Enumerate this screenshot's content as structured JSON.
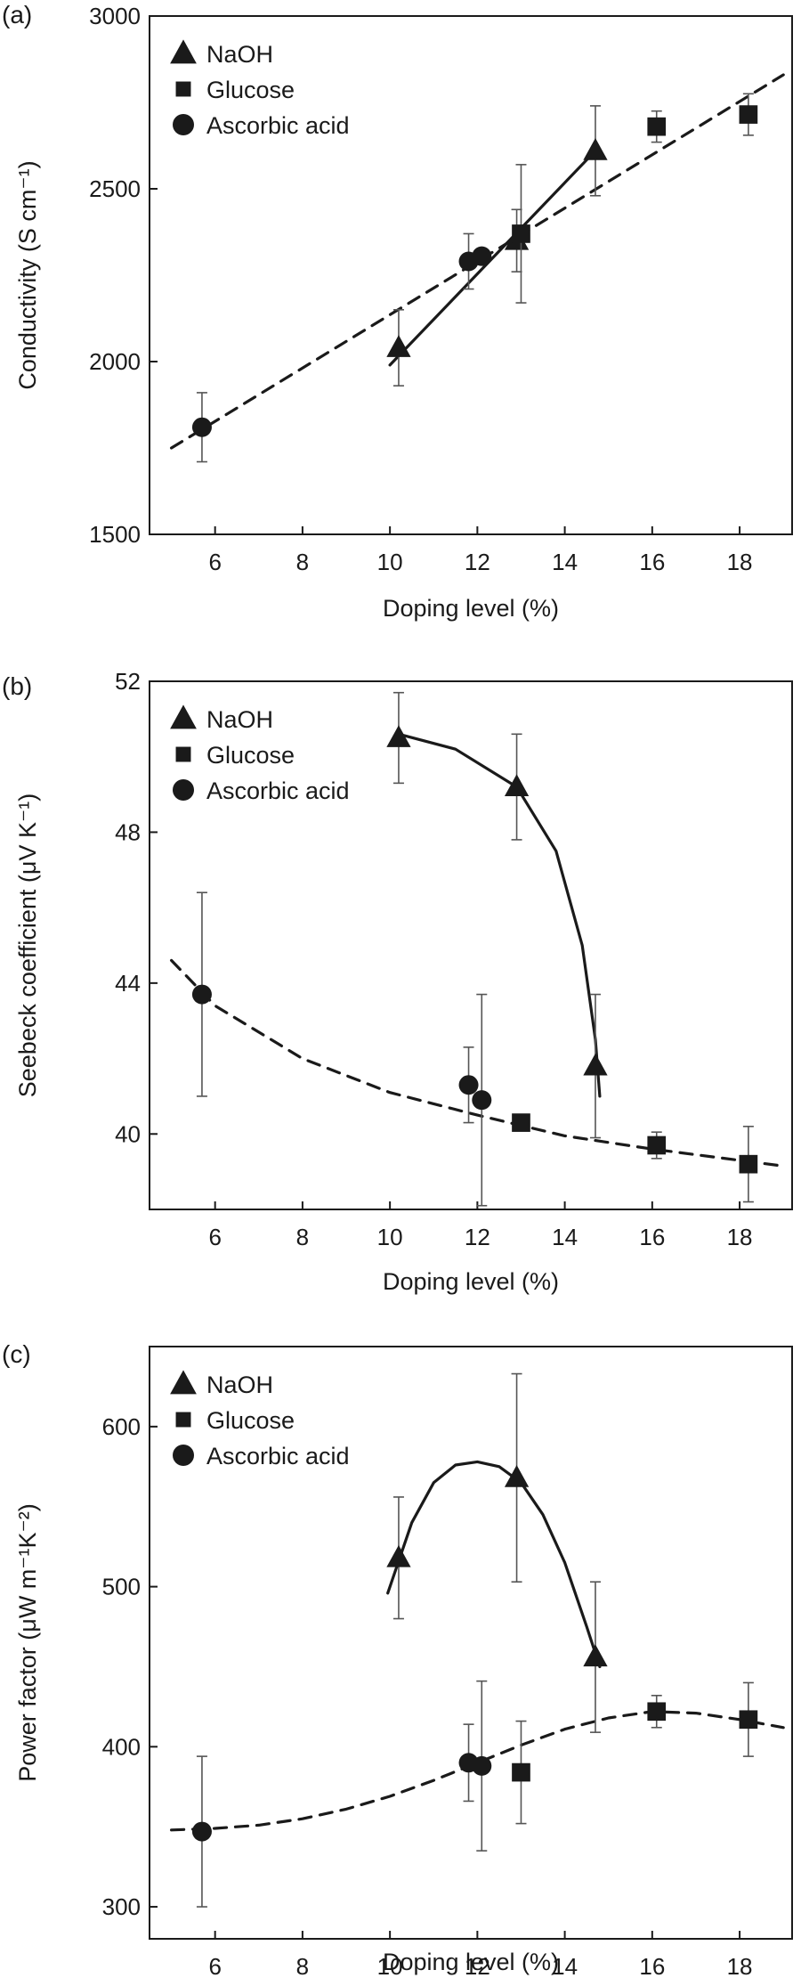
{
  "chart_data": [
    {
      "type": "scatter",
      "panel_label": "(a)",
      "xlabel": "Doping level (%)",
      "ylabel": "Conductivity (S cm⁻¹)",
      "xlim": [
        4.5,
        19.2
      ],
      "ylim": [
        1500,
        3000
      ],
      "xticks": [
        6,
        8,
        10,
        12,
        14,
        16,
        18
      ],
      "yticks": [
        1500,
        2000,
        2500,
        3000
      ],
      "legend": "top-left",
      "series": [
        {
          "name": "NaOH",
          "marker": "triangle",
          "x": [
            10.2,
            12.9,
            14.7
          ],
          "y": [
            2040,
            2350,
            2610
          ],
          "err": [
            110,
            90,
            130
          ]
        },
        {
          "name": "Glucose",
          "marker": "square",
          "x": [
            13.0,
            16.1,
            18.2
          ],
          "y": [
            2370,
            2680,
            2715
          ],
          "err": [
            200,
            45,
            60
          ]
        },
        {
          "name": "Ascorbic acid",
          "marker": "circle",
          "x": [
            5.7,
            11.8,
            12.1
          ],
          "y": [
            1810,
            2290,
            2305
          ],
          "err": [
            100,
            80,
            0
          ]
        }
      ],
      "fits": [
        {
          "style": "solid",
          "x": [
            10.0,
            14.7
          ],
          "y": [
            1990,
            2610
          ]
        },
        {
          "style": "dashed",
          "x": [
            5.0,
            19.0
          ],
          "y": [
            1750,
            2830
          ]
        }
      ]
    },
    {
      "type": "scatter",
      "panel_label": "(b)",
      "xlabel": "Doping level (%)",
      "ylabel": "Seebeck coefficient (μV K⁻¹)",
      "xlim": [
        4.5,
        19.2
      ],
      "ylim": [
        38,
        52
      ],
      "xticks": [
        6,
        8,
        10,
        12,
        14,
        16,
        18
      ],
      "yticks": [
        40,
        44,
        48,
        52
      ],
      "legend": "top-left",
      "series": [
        {
          "name": "NaOH",
          "marker": "triangle",
          "x": [
            10.2,
            12.9,
            14.7
          ],
          "y": [
            50.5,
            49.2,
            41.8
          ],
          "err": [
            1.2,
            1.4,
            1.9
          ]
        },
        {
          "name": "Glucose",
          "marker": "square",
          "x": [
            13.0,
            16.1,
            18.2
          ],
          "y": [
            40.3,
            39.7,
            39.2
          ],
          "err": [
            0,
            0.35,
            1.0
          ]
        },
        {
          "name": "Ascorbic acid",
          "marker": "circle",
          "x": [
            5.7,
            11.8,
            12.1
          ],
          "y": [
            43.7,
            41.3,
            40.9
          ],
          "err": [
            2.7,
            1.0,
            2.8
          ]
        }
      ],
      "fits": [
        {
          "style": "solid",
          "x": [
            10.2,
            11.5,
            12.9,
            13.8,
            14.4,
            14.7,
            14.8
          ],
          "y": [
            50.6,
            50.2,
            49.2,
            47.5,
            45.0,
            42.5,
            41.0
          ]
        },
        {
          "style": "dashed",
          "x": [
            5.0,
            6.0,
            8.0,
            10.0,
            12.0,
            14.0,
            16.0,
            18.0,
            19.0
          ],
          "y": [
            44.6,
            43.4,
            42.0,
            41.1,
            40.5,
            39.95,
            39.6,
            39.3,
            39.15
          ]
        }
      ]
    },
    {
      "type": "scatter",
      "panel_label": "(c)",
      "xlabel": "Doping level (%)",
      "ylabel": "Power factor (μW m⁻¹K⁻²)",
      "xlim": [
        4.5,
        19.2
      ],
      "ylim": [
        280,
        650
      ],
      "xticks": [
        6,
        8,
        10,
        12,
        14,
        16,
        18
      ],
      "yticks": [
        300,
        400,
        500,
        600
      ],
      "legend": "top-left",
      "series": [
        {
          "name": "NaOH",
          "marker": "triangle",
          "x": [
            10.2,
            12.9,
            14.7
          ],
          "y": [
            518,
            568,
            456
          ],
          "err": [
            38,
            65,
            47
          ]
        },
        {
          "name": "Glucose",
          "marker": "square",
          "x": [
            13.0,
            16.1,
            18.2
          ],
          "y": [
            384,
            422,
            417
          ],
          "err": [
            32,
            10,
            23
          ]
        },
        {
          "name": "Ascorbic acid",
          "marker": "circle",
          "x": [
            5.7,
            11.8,
            12.1
          ],
          "y": [
            347,
            390,
            388
          ],
          "err": [
            47,
            24,
            53
          ]
        }
      ],
      "fits": [
        {
          "style": "solid",
          "x": [
            9.95,
            10.5,
            11.0,
            11.5,
            12.0,
            12.5,
            13.0,
            13.5,
            14.0,
            14.5,
            14.8
          ],
          "y": [
            496,
            540,
            565,
            576,
            578,
            575,
            565,
            545,
            515,
            475,
            450
          ]
        },
        {
          "style": "dashed",
          "x": [
            5.0,
            6.0,
            7.0,
            8.0,
            9.0,
            10.0,
            11.0,
            12.0,
            13.0,
            14.0,
            15.0,
            16.0,
            17.0,
            18.0,
            19.0
          ],
          "y": [
            348,
            349,
            351,
            355,
            361,
            369,
            379,
            390,
            401,
            411,
            418,
            422,
            421,
            417,
            412
          ]
        }
      ]
    }
  ]
}
